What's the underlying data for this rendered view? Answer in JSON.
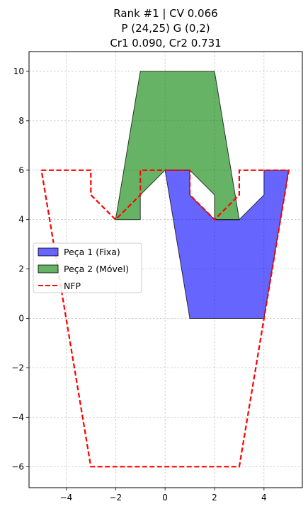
{
  "chart_data": {
    "type": "polygon-plot",
    "title_lines": [
      "Rank #1 | CV 0.066",
      "P (24,25) G (0,2)",
      "Cr1 0.090, Cr2 0.731"
    ],
    "xlabel": "",
    "ylabel": "",
    "xlim": [
      -5.5,
      5.55
    ],
    "ylim": [
      -6.85,
      10.8
    ],
    "x_ticks": [
      -4,
      -2,
      0,
      2,
      4
    ],
    "y_ticks": [
      -6,
      -4,
      -2,
      0,
      2,
      4,
      6,
      8,
      10
    ],
    "grid": true,
    "legend_position": "center-left",
    "series": [
      {
        "name": "Peça 1 (Fixa)",
        "kind": "filled-polygon",
        "color": "#0000ff",
        "points": [
          [
            0,
            6
          ],
          [
            1,
            6
          ],
          [
            1,
            5
          ],
          [
            2,
            4
          ],
          [
            3,
            4
          ],
          [
            4,
            5
          ],
          [
            4,
            6
          ],
          [
            5,
            6
          ],
          [
            4,
            0
          ],
          [
            1,
            0
          ],
          [
            0,
            6
          ]
        ]
      },
      {
        "name": "Peça 2 (Móvel)",
        "kind": "filled-polygon",
        "color": "#008000",
        "points": [
          [
            -1,
            10
          ],
          [
            2,
            10
          ],
          [
            3,
            4
          ],
          [
            2,
            4
          ],
          [
            2,
            5
          ],
          [
            1,
            6
          ],
          [
            0,
            6
          ],
          [
            -1,
            5
          ],
          [
            -1,
            4
          ],
          [
            -2,
            4
          ],
          [
            -1,
            10
          ]
        ]
      },
      {
        "name": "NFP",
        "kind": "dashed-outline",
        "color": "#ff0000",
        "points": [
          [
            -5,
            6
          ],
          [
            -3,
            6
          ],
          [
            -3,
            5
          ],
          [
            -2,
            4
          ],
          [
            -1,
            5
          ],
          [
            -1,
            6
          ],
          [
            1,
            6
          ],
          [
            1,
            5
          ],
          [
            2,
            4
          ],
          [
            3,
            5
          ],
          [
            3,
            6
          ],
          [
            5,
            6
          ],
          [
            3,
            -6
          ],
          [
            -3,
            -6
          ],
          [
            -5,
            6
          ]
        ]
      }
    ]
  }
}
